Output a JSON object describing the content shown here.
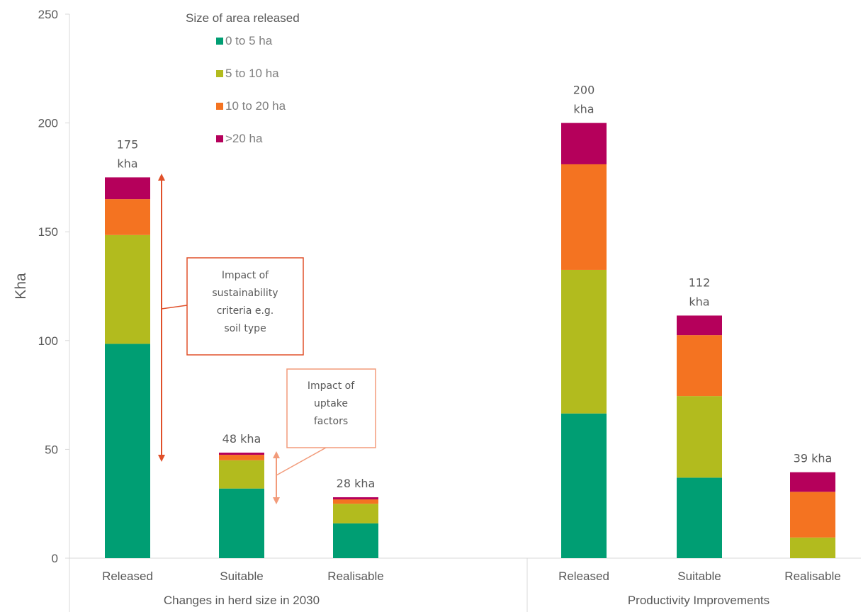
{
  "chart_data": {
    "type": "bar",
    "stacked": true,
    "ylabel": "Kha",
    "ylim": [
      0,
      250
    ],
    "yticks": [
      0,
      50,
      100,
      150,
      200,
      250
    ],
    "groups": [
      {
        "label": "Changes in herd size in 2030",
        "categories": [
          "Released",
          "Suitable",
          "Realisable"
        ]
      },
      {
        "label": "Productivity Improvements",
        "categories": [
          "Released",
          "Suitable",
          "Realisable"
        ]
      }
    ],
    "categories": [
      "Released",
      "Suitable",
      "Realisable",
      "Released",
      "Suitable",
      "Realisable"
    ],
    "legend_title": "Size of area released",
    "legend_position": "top-left",
    "series": [
      {
        "name": "0 to 5 ha",
        "color": "#009e73",
        "values": [
          98.5,
          32,
          16,
          66.5,
          37,
          0
        ]
      },
      {
        "name": "5 to 10 ha",
        "color": "#b2bb1e",
        "values": [
          50,
          13,
          9,
          66,
          37.5,
          9.5
        ]
      },
      {
        "name": "10 to 20 ha",
        "color": "#f47321",
        "values": [
          16.5,
          2.5,
          2,
          48.5,
          28,
          21
        ]
      },
      {
        "name": ">20 ha",
        "color": "#b5005b",
        "values": [
          10,
          1,
          1,
          19,
          9,
          9
        ]
      }
    ],
    "totals_labels": [
      "175\nkha",
      "48 kha",
      "28 kha",
      "200\nkha",
      "112\nkha",
      "39 kha"
    ],
    "annotations": [
      {
        "text": "Impact of\nsustainability\ncriteria e.g.\nsoil type",
        "color": "#e0502a"
      },
      {
        "text": "Impact of\nuptake\nfactors",
        "color": "#f29b7a"
      }
    ]
  }
}
